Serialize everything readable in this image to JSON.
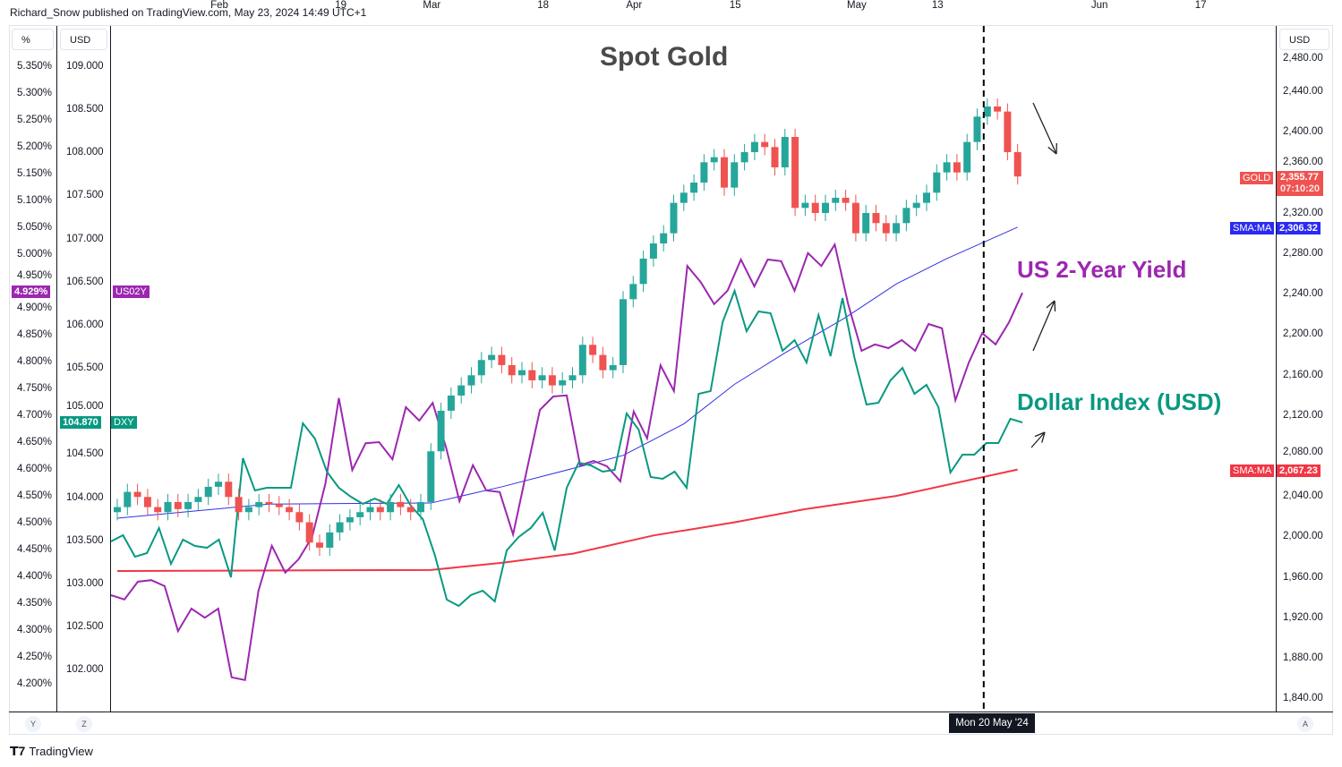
{
  "header": {
    "published": "Richard_Snow published on TradingView.com, May 23, 2024 14:49 UTC+1"
  },
  "footer": {
    "logo": "TradingView"
  },
  "axes": {
    "left_pct_unit": "%",
    "left_usd_unit": "USD",
    "right_unit": "USD",
    "left_pct_ticks": [
      "5.350%",
      "5.300%",
      "5.250%",
      "5.200%",
      "5.150%",
      "5.100%",
      "5.050%",
      "5.000%",
      "4.950%",
      "4.900%",
      "4.850%",
      "4.800%",
      "4.750%",
      "4.700%",
      "4.650%",
      "4.600%",
      "4.550%",
      "4.500%",
      "4.450%",
      "4.400%",
      "4.350%",
      "4.300%",
      "4.250%",
      "4.200%"
    ],
    "left_usd_ticks": [
      "109.000",
      "108.500",
      "108.000",
      "107.500",
      "107.000",
      "106.500",
      "106.000",
      "105.500",
      "105.000",
      "104.500",
      "104.000",
      "103.500",
      "103.000",
      "102.500",
      "102.000"
    ],
    "right_ticks": [
      "2,480.00",
      "2,440.00",
      "2,400.00",
      "2,360.00",
      "2,320.00",
      "2,280.00",
      "2,240.00",
      "2,200.00",
      "2,160.00",
      "2,120.00",
      "2,080.00",
      "2,040.00",
      "2,000.00",
      "1,960.00",
      "1,920.00",
      "1,880.00",
      "1,840.00"
    ],
    "time_ticks": [
      {
        "label": "Feb",
        "day": 10
      },
      {
        "label": "19",
        "day": 22
      },
      {
        "label": "Mar",
        "day": 31
      },
      {
        "label": "18",
        "day": 42
      },
      {
        "label": "Apr",
        "day": 51
      },
      {
        "label": "15",
        "day": 61
      },
      {
        "label": "May",
        "day": 73
      },
      {
        "label": "13",
        "day": 81
      },
      {
        "label": "Jun",
        "day": 97
      },
      {
        "label": "17",
        "day": 107
      }
    ],
    "crosshair_date": "Mon 20 May '24",
    "buttons": {
      "left1": "Y",
      "left2": "Z",
      "right": "A"
    }
  },
  "badges": {
    "us02y_value": "4.929%",
    "us02y_name": "US02Y",
    "dxy_value": "104.870",
    "dxy_name": "DXY",
    "gold_name": "GOLD",
    "gold_value": "2,355.77",
    "gold_timer": "07:10:20",
    "sma50_name": "SMA:MA",
    "sma50_value": "2,306.32",
    "sma200_name": "SMA:MA",
    "sma200_value": "2,067.23"
  },
  "colors": {
    "up": "#26a69a",
    "down": "#ef5350",
    "dxy": "#089981",
    "us02y": "#9c27b0",
    "sma50": "#3030e8",
    "sma200": "#f23645"
  },
  "chart_data": {
    "type": "candlestick+line",
    "title": "Spot Gold",
    "annotations": [
      "US 2-Year Yield",
      "Dollar Index (USD)"
    ],
    "crosshair_day": 86,
    "gold_close": [
      2030,
      2045,
      2040,
      2030,
      2025,
      2035,
      2028,
      2035,
      2040,
      2050,
      2055,
      2040,
      2025,
      2030,
      2035,
      2033,
      2030,
      2025,
      2015,
      1995,
      1990,
      2005,
      2015,
      2020,
      2025,
      2030,
      2025,
      2035,
      2030,
      2025,
      2035,
      2085,
      2125,
      2140,
      2150,
      2160,
      2175,
      2180,
      2170,
      2160,
      2165,
      2155,
      2160,
      2150,
      2155,
      2160,
      2190,
      2180,
      2165,
      2170,
      2235,
      2250,
      2275,
      2290,
      2300,
      2330,
      2340,
      2350,
      2370,
      2375,
      2345,
      2370,
      2380,
      2390,
      2385,
      2365,
      2395,
      2325,
      2330,
      2320,
      2330,
      2335,
      2330,
      2300,
      2320,
      2310,
      2300,
      2310,
      2325,
      2330,
      2340,
      2360,
      2370,
      2360,
      2390,
      2415,
      2425,
      2420,
      2380,
      2356
    ],
    "sma50": [
      [
        0,
        2019
      ],
      [
        15,
        2033
      ],
      [
        31,
        2034
      ],
      [
        38,
        2050
      ],
      [
        45,
        2068
      ],
      [
        50,
        2081
      ],
      [
        56,
        2112
      ],
      [
        61,
        2151
      ],
      [
        66,
        2182
      ],
      [
        72,
        2217
      ],
      [
        77,
        2250
      ],
      [
        82,
        2275
      ],
      [
        89,
        2306
      ]
    ],
    "sma200": [
      [
        0,
        1967
      ],
      [
        31,
        1968
      ],
      [
        38,
        1975
      ],
      [
        45,
        1984
      ],
      [
        53,
        2002
      ],
      [
        61,
        2015
      ],
      [
        68,
        2028
      ],
      [
        77,
        2041
      ],
      [
        89,
        2067
      ]
    ],
    "us02y": [
      4.365,
      4.357,
      4.39,
      4.393,
      4.382,
      4.298,
      4.34,
      4.323,
      4.34,
      4.212,
      4.207,
      4.373,
      4.457,
      4.407,
      4.432,
      4.473,
      4.573,
      4.732,
      4.598,
      4.648,
      4.65,
      4.618,
      4.715,
      4.69,
      4.723,
      4.64,
      4.54,
      4.607,
      4.56,
      4.557,
      4.478,
      4.595,
      4.71,
      4.735,
      4.737,
      4.607,
      4.615,
      4.605,
      4.577,
      4.707,
      4.657,
      4.793,
      4.745,
      4.978,
      4.948,
      4.907,
      4.932,
      4.99,
      4.94,
      4.99,
      4.987,
      4.932,
      5.002,
      4.978,
      5.018,
      4.907,
      4.82,
      4.832,
      4.825,
      4.84,
      4.82,
      4.87,
      4.862,
      4.728,
      4.798,
      4.853,
      4.832,
      4.873,
      4.928
    ],
    "dxy": [
      103.486,
      103.559,
      103.309,
      103.351,
      103.642,
      103.226,
      103.507,
      103.434,
      103.413,
      103.507,
      103.071,
      104.452,
      104.078,
      104.109,
      104.109,
      104.109,
      104.857,
      104.68,
      104.296,
      104.109,
      104.005,
      103.922,
      103.984,
      103.922,
      104.14,
      103.901,
      103.746,
      103.33,
      102.811,
      102.738,
      102.863,
      102.915,
      102.79,
      103.382,
      103.538,
      103.642,
      103.818,
      103.382,
      104.109,
      104.4,
      104.369,
      104.296,
      104.317,
      104.971,
      104.784,
      104.234,
      104.213,
      104.296,
      104.109,
      105.199,
      105.231,
      106.03,
      106.394,
      105.926,
      106.155,
      106.134,
      105.698,
      105.822,
      105.563,
      106.113,
      105.636,
      106.31,
      105.615,
      105.075,
      105.096,
      105.355,
      105.5,
      105.199,
      105.303,
      105.044,
      104.286,
      104.493,
      104.493,
      104.628,
      104.628,
      104.909,
      104.867
    ],
    "ylim_gold": [
      1820,
      2500
    ],
    "ylim_dxy": [
      101.6,
      109.5
    ],
    "ylim_pct": [
      4.15,
      5.4
    ]
  }
}
